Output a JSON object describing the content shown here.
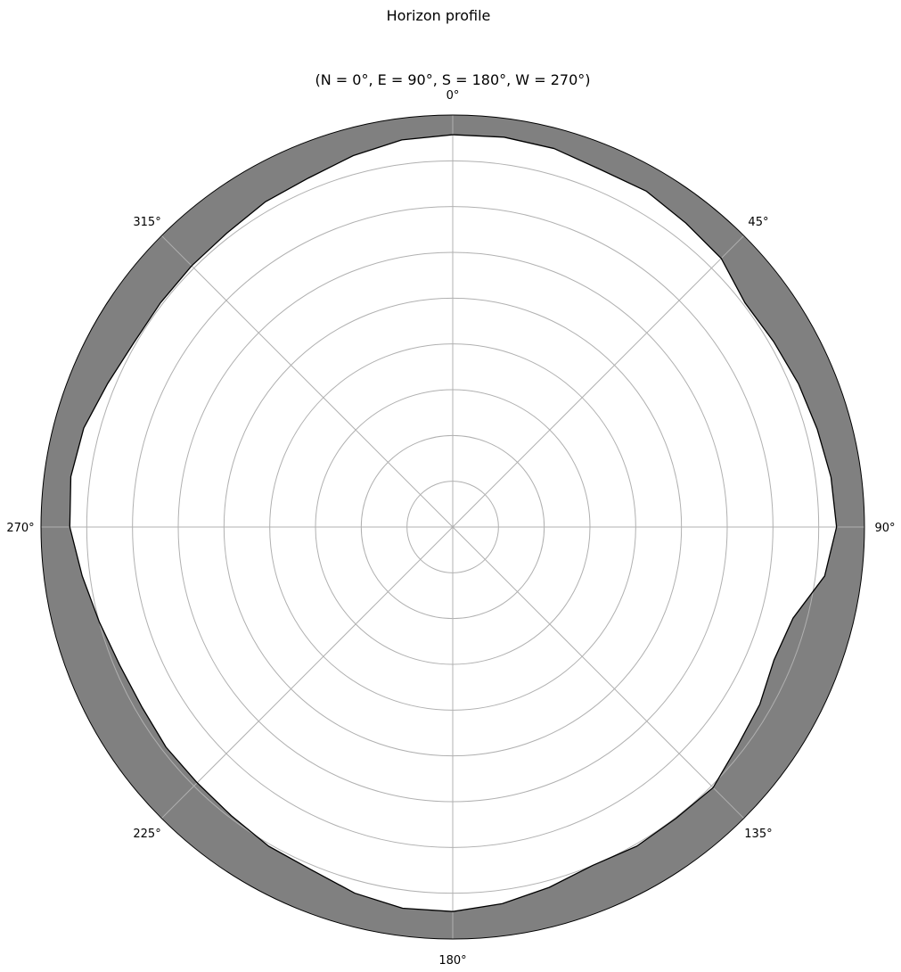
{
  "chart_data": {
    "type": "polar-area",
    "title": "Horizon profile",
    "subtitle": "(N = 0°, E = 90°, S = 180°, W = 270°)",
    "theta_zero_location": "N",
    "theta_direction": "clockwise",
    "angular_ticks": [
      {
        "angle": 0,
        "label": "0°"
      },
      {
        "angle": 45,
        "label": "45°"
      },
      {
        "angle": 90,
        "label": "90°"
      },
      {
        "angle": 135,
        "label": "135°"
      },
      {
        "angle": 180,
        "label": "180°"
      },
      {
        "angle": 225,
        "label": "225°"
      },
      {
        "angle": 270,
        "label": "270°"
      }
    ],
    "extra_tick_labels": [
      {
        "angle": 315,
        "label": "315°"
      }
    ],
    "radial_range": [
      0,
      90
    ],
    "radial_gridlines": [
      10,
      20,
      30,
      40,
      50,
      60,
      70,
      80
    ],
    "radial_tick_labels_shown": false,
    "grid": true,
    "series": [
      {
        "azimuth": [
          0,
          7.5,
          15,
          22.5,
          30,
          37.5,
          45,
          52.5,
          60,
          67.5,
          75,
          82.5,
          90,
          97.5,
          105,
          112.5,
          120,
          127.5,
          135,
          142.5,
          150,
          157.5,
          165,
          172.5,
          180,
          187.5,
          195,
          202.5,
          210,
          217.5,
          225,
          232.5,
          240,
          247.5,
          255,
          262.5,
          270,
          277.5,
          285,
          292.5,
          300,
          307.5,
          315,
          322.5,
          330,
          337.5,
          345,
          352.5,
          360
        ],
        "elevation_deg": [
          4.3,
          4.1,
          4.4,
          5.5,
          5.3,
          6.3,
          7.0,
          9.5,
          9.0,
          8.2,
          7.5,
          6.6,
          6.1,
          8.0,
          13.0,
          14.0,
          12.5,
          11.5,
          9.5,
          9.8,
          9.5,
          10.0,
          8.5,
          7.0,
          6.0,
          6.0,
          7.2,
          9.0,
          9.5,
          10.5,
          11.0,
          11.0,
          11.5,
          11.2,
          10.0,
          8.3,
          6.3,
          5.8,
          6.5,
          8.3,
          9.5,
          9.5,
          9.3,
          9.0,
          8.0,
          7.5,
          6.0,
          4.7,
          4.3
        ],
        "fill_color": "#808080",
        "edge_color": "#000000"
      }
    ]
  }
}
